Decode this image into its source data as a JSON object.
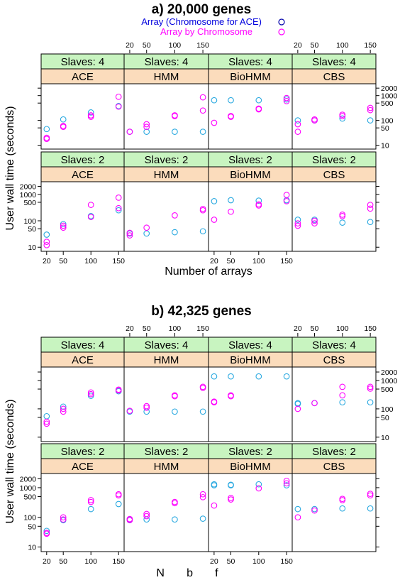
{
  "colors": {
    "series1": "#2aa9e0",
    "series2": "#ff00ff",
    "legend_text1": "#0000dd",
    "legend_text2": "#ff00ff",
    "legend_marker1": "#0000aa",
    "legend_marker2": "#ff00ff",
    "strip_top": "#c8f4c0",
    "strip_bottom": "#fbdcbc"
  },
  "legend": {
    "position": "top-right",
    "entries": [
      "Array (Chromosome for ACE)",
      "Array by Chromosome"
    ]
  },
  "chart_data": [
    {
      "type": "scatter",
      "title": "a) 20,000 genes",
      "xlabel": "Number of arrays",
      "ylabel": "User wall time (seconds)",
      "x_ticks": [
        20,
        50,
        100,
        150
      ],
      "y_ticks": [
        10,
        50,
        100,
        500,
        1000,
        2000
      ],
      "y_scale": "log",
      "ylim": [
        7,
        3000
      ],
      "xlim": [
        10,
        160
      ],
      "grid": false,
      "panels": [
        {
          "slaves_label": "Slaves: 4",
          "method": "ACE",
          "series": [
            {
              "x": [
                20,
                50,
                100,
                150
              ],
              "y": [
                45,
                110,
                210,
                380
              ]
            },
            {
              "x": [
                20,
                20,
                50,
                50,
                100,
                100,
                150,
                150
              ],
              "y": [
                18,
                20,
                55,
                60,
                140,
                160,
                360,
                900
              ]
            }
          ]
        },
        {
          "slaves_label": "Slaves: 4",
          "method": "HMM",
          "series": [
            {
              "x": [
                20,
                50,
                100,
                150
              ],
              "y": [
                35,
                35,
                35,
                35
              ]
            },
            {
              "x": [
                20,
                50,
                50,
                100,
                100,
                150,
                150
              ],
              "y": [
                35,
                55,
                70,
                150,
                160,
                250,
                850
              ]
            }
          ]
        },
        {
          "slaves_label": "Slaves: 4",
          "method": "BioHMM",
          "series": [
            {
              "x": [
                20,
                50,
                100,
                150
              ],
              "y": [
                650,
                650,
                650,
                700
              ]
            },
            {
              "x": [
                20,
                50,
                50,
                100,
                100,
                150,
                150
              ],
              "y": [
                80,
                140,
                150,
                280,
                300,
                600,
                800
              ]
            }
          ]
        },
        {
          "slaves_label": "Slaves: 4",
          "method": "CBS",
          "series": [
            {
              "x": [
                20,
                50,
                100,
                150
              ],
              "y": [
                100,
                100,
                120,
                100
              ]
            },
            {
              "x": [
                20,
                20,
                50,
                50,
                100,
                100,
                150,
                150
              ],
              "y": [
                35,
                70,
                100,
                110,
                150,
                170,
                260,
                320
              ]
            }
          ]
        },
        {
          "slaves_label": "Slaves: 2",
          "method": "ACE",
          "series": [
            {
              "x": [
                20,
                50,
                100,
                150
              ],
              "y": [
                30,
                75,
                150,
                250
              ]
            },
            {
              "x": [
                20,
                20,
                50,
                50,
                100,
                100,
                150,
                150
              ],
              "y": [
                12,
                16,
                55,
                65,
                140,
                400,
                300,
                750
              ]
            }
          ]
        },
        {
          "slaves_label": "Slaves: 2",
          "method": "HMM",
          "series": [
            {
              "x": [
                20,
                50,
                100,
                150
              ],
              "y": [
                33,
                33,
                37,
                40
              ]
            },
            {
              "x": [
                20,
                20,
                50,
                100,
                150,
                150
              ],
              "y": [
                28,
                35,
                55,
                160,
                250,
                280
              ]
            }
          ]
        },
        {
          "slaves_label": "Slaves: 2",
          "method": "BioHMM",
          "series": [
            {
              "x": [
                20,
                50,
                100,
                150
              ],
              "y": [
                550,
                600,
                580,
                600
              ]
            },
            {
              "x": [
                20,
                50,
                100,
                100,
                150,
                150
              ],
              "y": [
                110,
                220,
                380,
                420,
                550,
                950
              ]
            }
          ]
        },
        {
          "slaves_label": "Slaves: 2",
          "method": "CBS",
          "series": [
            {
              "x": [
                20,
                50,
                100,
                150
              ],
              "y": [
                110,
                110,
                85,
                90
              ]
            },
            {
              "x": [
                20,
                20,
                50,
                50,
                100,
                100,
                150,
                150
              ],
              "y": [
                65,
                80,
                80,
                100,
                150,
                170,
                290,
                400
              ]
            }
          ]
        }
      ]
    },
    {
      "type": "scatter",
      "title": "b) 42,325 genes",
      "xlabel": "N       b       f",
      "ylabel": "User wall time (seconds)",
      "x_ticks": [
        20,
        50,
        100,
        150
      ],
      "y_ticks": [
        10,
        50,
        100,
        500,
        1000,
        2000
      ],
      "y_scale": "log",
      "ylim": [
        7,
        3000
      ],
      "xlim": [
        10,
        160
      ],
      "grid": false,
      "panels": [
        {
          "slaves_label": "Slaves: 4",
          "method": "ACE",
          "series": [
            {
              "x": [
                20,
                50,
                100,
                150
              ],
              "y": [
                55,
                120,
                290,
                420
              ]
            },
            {
              "x": [
                20,
                20,
                50,
                50,
                100,
                100,
                150,
                150
              ],
              "y": [
                30,
                35,
                80,
                100,
                330,
                380,
                450,
                480
              ]
            }
          ]
        },
        {
          "slaves_label": "Slaves: 4",
          "method": "HMM",
          "series": [
            {
              "x": [
                20,
                50,
                100,
                150
              ],
              "y": [
                80,
                80,
                80,
                80
              ]
            },
            {
              "x": [
                20,
                50,
                50,
                100,
                100,
                150,
                150
              ],
              "y": [
                85,
                110,
                125,
                280,
                300,
                550,
                600
              ]
            }
          ]
        },
        {
          "slaves_label": "Slaves: 4",
          "method": "BioHMM",
          "series": [
            {
              "x": [
                20,
                50,
                100,
                150
              ],
              "y": [
                1400,
                1400,
                1400,
                1400
              ]
            },
            {
              "x": [
                20,
                20,
                50,
                50
              ],
              "y": [
                170,
                180,
                280,
                300
              ]
            }
          ]
        },
        {
          "slaves_label": "Slaves: 4",
          "method": "CBS",
          "series": [
            {
              "x": [
                20,
                20,
                50,
                100,
                150
              ],
              "y": [
                150,
                160,
                160,
                170,
                170
              ]
            },
            {
              "x": [
                20,
                50,
                100,
                100,
                150,
                150
              ],
              "y": [
                100,
                160,
                300,
                600,
                520,
                600
              ]
            }
          ]
        },
        {
          "slaves_label": "Slaves: 2",
          "method": "ACE",
          "series": [
            {
              "x": [
                20,
                50,
                100,
                150
              ],
              "y": [
                35,
                80,
                190,
                280
              ]
            },
            {
              "x": [
                20,
                20,
                50,
                50,
                100,
                100,
                150,
                150
              ],
              "y": [
                28,
                30,
                85,
                100,
                330,
                380,
                550,
                600
              ]
            }
          ]
        },
        {
          "slaves_label": "Slaves: 2",
          "method": "HMM",
          "series": [
            {
              "x": [
                20,
                50,
                100,
                150
              ],
              "y": [
                85,
                85,
                85,
                90
              ]
            },
            {
              "x": [
                20,
                20,
                50,
                50,
                100,
                100,
                150,
                150
              ],
              "y": [
                80,
                88,
                110,
                130,
                300,
                330,
                480,
                600
              ]
            }
          ]
        },
        {
          "slaves_label": "Slaves: 2",
          "method": "BioHMM",
          "series": [
            {
              "x": [
                20,
                20,
                50,
                50,
                100,
                150
              ],
              "y": [
                1200,
                1300,
                1200,
                1250,
                1300,
                1200
              ]
            },
            {
              "x": [
                20,
                50,
                50,
                100,
                150,
                150
              ],
              "y": [
                250,
                400,
                450,
                950,
                1400,
                1700
              ]
            }
          ]
        },
        {
          "slaves_label": "Slaves: 2",
          "method": "CBS",
          "series": [
            {
              "x": [
                20,
                50,
                100,
                150
              ],
              "y": [
                190,
                190,
                200,
                200
              ]
            },
            {
              "x": [
                20,
                50,
                100,
                100,
                150,
                150
              ],
              "y": [
                100,
                170,
                380,
                420,
                550,
                620
              ]
            }
          ]
        }
      ]
    }
  ]
}
